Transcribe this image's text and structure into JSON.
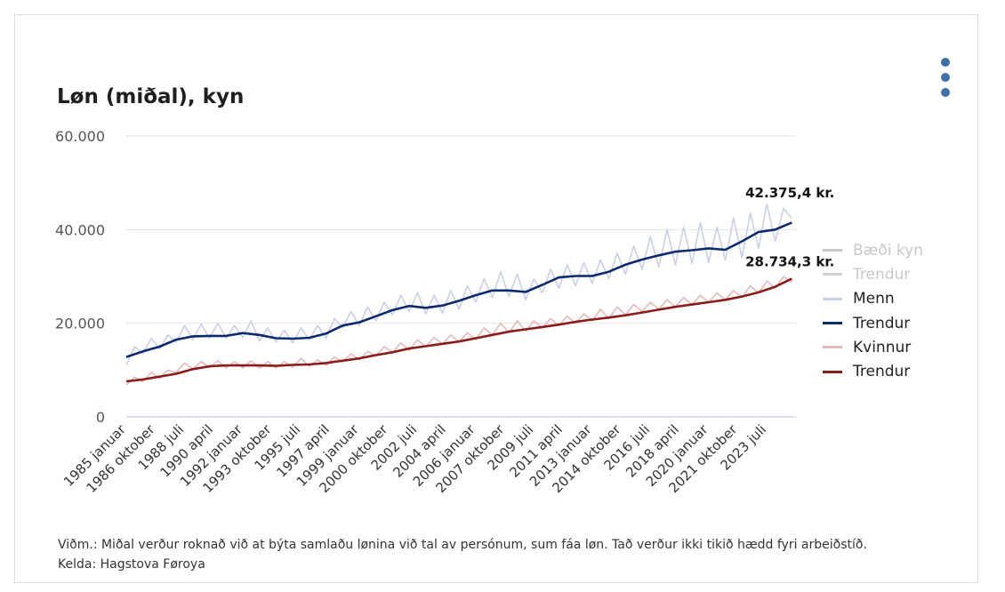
{
  "title": "Løn (miðal), kyn",
  "note": "Viðm.: Miðal verður roknað við at býta samlaðu lønina við tal av persónum, sum fáa løn. Tað verður ikki tikið hædd fyri arbeiðstíð.",
  "source": "Kelda: Hagstova Føroya",
  "menu_icon": "more-vertical-icon",
  "legend": [
    {
      "label": "Bæði kyn",
      "color": "#c8c8c8",
      "dim": true
    },
    {
      "label": "Trendur",
      "color": "#d0d0d0",
      "dim": true
    },
    {
      "label": "Menn",
      "color": "#c9d0e4",
      "dim": false
    },
    {
      "label": "Trendur",
      "color": "#0e2a6e",
      "dim": false
    },
    {
      "label": "Kvinnur",
      "color": "#e3b9b9",
      "dim": false
    },
    {
      "label": "Trendur",
      "color": "#8b1c1c",
      "dim": false
    }
  ],
  "chart_data": {
    "type": "line",
    "title": "Løn (miðal), kyn",
    "xlabel": "",
    "ylabel": "",
    "x_range": [
      1985.0,
      2025.25
    ],
    "ylim": [
      0,
      60000
    ],
    "y_ticks": [
      0,
      20000,
      40000,
      60000
    ],
    "y_tick_labels": [
      "0",
      "20.000",
      "40.000",
      "60.000"
    ],
    "x_tick_labels": [
      {
        "label": "1985 januar",
        "x": 1985.0
      },
      {
        "label": "1986 oktober",
        "x": 1986.75
      },
      {
        "label": "1988 juli",
        "x": 1988.5
      },
      {
        "label": "1990 april",
        "x": 1990.25
      },
      {
        "label": "1992 januar",
        "x": 1992.0
      },
      {
        "label": "1993 oktober",
        "x": 1993.75
      },
      {
        "label": "1995 juli",
        "x": 1995.5
      },
      {
        "label": "1997 april",
        "x": 1997.25
      },
      {
        "label": "1999 januar",
        "x": 1999.0
      },
      {
        "label": "2000 oktober",
        "x": 2000.75
      },
      {
        "label": "2002 juli",
        "x": 2002.5
      },
      {
        "label": "2004 april",
        "x": 2004.25
      },
      {
        "label": "2006 januar",
        "x": 2006.0
      },
      {
        "label": "2007 oktober",
        "x": 2007.75
      },
      {
        "label": "2009 juli",
        "x": 2009.5
      },
      {
        "label": "2011 april",
        "x": 2011.25
      },
      {
        "label": "2013 januar",
        "x": 2013.0
      },
      {
        "label": "2014 oktober",
        "x": 2014.75
      },
      {
        "label": "2016 juli",
        "x": 2016.5
      },
      {
        "label": "2018 april",
        "x": 2018.25
      },
      {
        "label": "2020 januar",
        "x": 2020.0
      },
      {
        "label": "2021 oktober",
        "x": 2021.75
      },
      {
        "label": "2023 juli",
        "x": 2023.5
      }
    ],
    "grid": true,
    "legend_position": "right",
    "series": [
      {
        "name": "Menn",
        "color": "#c9d0e4",
        "kind": "raw",
        "x": [
          1985.0,
          1985.5,
          1986.0,
          1986.5,
          1987.0,
          1987.5,
          1988.0,
          1988.5,
          1989.0,
          1989.5,
          1990.0,
          1990.5,
          1991.0,
          1991.5,
          1992.0,
          1992.5,
          1993.0,
          1993.5,
          1994.0,
          1994.5,
          1995.0,
          1995.5,
          1996.0,
          1996.5,
          1997.0,
          1997.5,
          1998.0,
          1998.5,
          1999.0,
          1999.5,
          2000.0,
          2000.5,
          2001.0,
          2001.5,
          2002.0,
          2002.5,
          2003.0,
          2003.5,
          2004.0,
          2004.5,
          2005.0,
          2005.5,
          2006.0,
          2006.5,
          2007.0,
          2007.5,
          2008.0,
          2008.5,
          2009.0,
          2009.5,
          2010.0,
          2010.5,
          2011.0,
          2011.5,
          2012.0,
          2012.5,
          2013.0,
          2013.5,
          2014.0,
          2014.5,
          2015.0,
          2015.5,
          2016.0,
          2016.5,
          2017.0,
          2017.5,
          2018.0,
          2018.5,
          2019.0,
          2019.5,
          2020.0,
          2020.5,
          2021.0,
          2021.5,
          2022.0,
          2022.5,
          2023.0,
          2023.5,
          2024.0,
          2024.5,
          2025.0
        ],
        "values": [
          11000,
          15000,
          13500,
          16800,
          14500,
          17500,
          16000,
          19500,
          16500,
          19800,
          16800,
          20000,
          16800,
          19500,
          17000,
          20500,
          16200,
          19000,
          16000,
          18500,
          15800,
          19000,
          16500,
          19500,
          16800,
          21000,
          19000,
          22500,
          19500,
          23500,
          20500,
          24500,
          21800,
          26000,
          22500,
          26500,
          22000,
          26000,
          22200,
          27000,
          23000,
          28000,
          24500,
          29500,
          25500,
          31000,
          25800,
          30500,
          25000,
          29500,
          26500,
          31500,
          27500,
          32500,
          28000,
          33000,
          28500,
          33500,
          29500,
          35000,
          30500,
          36500,
          31500,
          38500,
          32000,
          40000,
          32500,
          40500,
          32800,
          41500,
          33000,
          40500,
          33500,
          42500,
          34000,
          43500,
          36000,
          45500,
          37500,
          44500,
          42375.4
        ]
      },
      {
        "name": "Trendur",
        "color": "#0e2a6e",
        "kind": "trend",
        "x": [
          1985.0,
          1986.0,
          1987.0,
          1988.0,
          1989.0,
          1990.0,
          1991.0,
          1992.0,
          1993.0,
          1994.0,
          1995.0,
          1996.0,
          1997.0,
          1998.0,
          1999.0,
          2000.0,
          2001.0,
          2002.0,
          2003.0,
          2004.0,
          2005.0,
          2006.0,
          2007.0,
          2008.0,
          2009.0,
          2010.0,
          2011.0,
          2012.0,
          2013.0,
          2014.0,
          2015.0,
          2016.0,
          2017.0,
          2018.0,
          2019.0,
          2020.0,
          2021.0,
          2022.0,
          2023.0,
          2024.0,
          2025.0
        ],
        "values": [
          12800,
          14000,
          15000,
          16500,
          17200,
          17300,
          17300,
          17900,
          17500,
          16800,
          16700,
          16900,
          17800,
          19500,
          20200,
          21500,
          22800,
          23700,
          23300,
          23800,
          24800,
          26000,
          27000,
          27000,
          26700,
          28200,
          29800,
          30100,
          30100,
          31000,
          32500,
          33600,
          34500,
          35300,
          35600,
          36000,
          35700,
          37500,
          39500,
          40000,
          41500
        ]
      },
      {
        "name": "Kvinnur",
        "color": "#e3b9b9",
        "kind": "raw",
        "x": [
          1985.0,
          1985.5,
          1986.0,
          1986.5,
          1987.0,
          1987.5,
          1988.0,
          1988.5,
          1989.0,
          1989.5,
          1990.0,
          1990.5,
          1991.0,
          1991.5,
          1992.0,
          1992.5,
          1993.0,
          1993.5,
          1994.0,
          1994.5,
          1995.0,
          1995.5,
          1996.0,
          1996.5,
          1997.0,
          1997.5,
          1998.0,
          1998.5,
          1999.0,
          1999.5,
          2000.0,
          2000.5,
          2001.0,
          2001.5,
          2002.0,
          2002.5,
          2003.0,
          2003.5,
          2004.0,
          2004.5,
          2005.0,
          2005.5,
          2006.0,
          2006.5,
          2007.0,
          2007.5,
          2008.0,
          2008.5,
          2009.0,
          2009.5,
          2010.0,
          2010.5,
          2011.0,
          2011.5,
          2012.0,
          2012.5,
          2013.0,
          2013.5,
          2014.0,
          2014.5,
          2015.0,
          2015.5,
          2016.0,
          2016.5,
          2017.0,
          2017.5,
          2018.0,
          2018.5,
          2019.0,
          2019.5,
          2020.0,
          2020.5,
          2021.0,
          2021.5,
          2022.0,
          2022.5,
          2023.0,
          2023.5,
          2024.0,
          2024.5,
          2025.0
        ],
        "values": [
          6800,
          8500,
          7500,
          9500,
          8200,
          10000,
          9500,
          11500,
          10200,
          11800,
          10500,
          12000,
          10500,
          11800,
          10500,
          12000,
          10400,
          11800,
          10500,
          11800,
          10600,
          12500,
          10800,
          12200,
          11000,
          12800,
          11800,
          13500,
          12200,
          14000,
          13000,
          15000,
          13800,
          15800,
          14200,
          16500,
          15000,
          17000,
          15500,
          17500,
          16000,
          18000,
          16500,
          19000,
          17500,
          20000,
          18000,
          20500,
          18300,
          20500,
          19000,
          21000,
          19500,
          21500,
          20000,
          22000,
          20500,
          23000,
          21000,
          23500,
          21800,
          24000,
          22500,
          24500,
          23000,
          25000,
          23500,
          25500,
          24000,
          26000,
          24500,
          26500,
          25000,
          27000,
          25500,
          28000,
          26500,
          29000,
          27500,
          30000,
          28734.3
        ]
      },
      {
        "name": "Trendur",
        "color": "#8b1c1c",
        "kind": "trend",
        "x": [
          1985.0,
          1986.0,
          1987.0,
          1988.0,
          1989.0,
          1990.0,
          1991.0,
          1992.0,
          1993.0,
          1994.0,
          1995.0,
          1996.0,
          1997.0,
          1998.0,
          1999.0,
          2000.0,
          2001.0,
          2002.0,
          2003.0,
          2004.0,
          2005.0,
          2006.0,
          2007.0,
          2008.0,
          2009.0,
          2010.0,
          2011.0,
          2012.0,
          2013.0,
          2014.0,
          2015.0,
          2016.0,
          2017.0,
          2018.0,
          2019.0,
          2020.0,
          2021.0,
          2022.0,
          2023.0,
          2024.0,
          2025.0
        ],
        "values": [
          7600,
          8000,
          8600,
          9200,
          10200,
          10800,
          11000,
          11000,
          11000,
          10900,
          11100,
          11200,
          11500,
          12000,
          12500,
          13200,
          13800,
          14600,
          15100,
          15600,
          16100,
          16800,
          17500,
          18200,
          18700,
          19200,
          19700,
          20300,
          20800,
          21200,
          21700,
          22300,
          22900,
          23500,
          24000,
          24500,
          25000,
          25700,
          26600,
          27800,
          29500
        ]
      }
    ],
    "annotations": [
      {
        "text": "42.375,4 kr.",
        "series": "Menn",
        "x": 2025.0,
        "y": 42375.4
      },
      {
        "text": "28.734,3 kr.",
        "series": "Kvinnur",
        "x": 2025.0,
        "y": 28734.3
      }
    ]
  }
}
